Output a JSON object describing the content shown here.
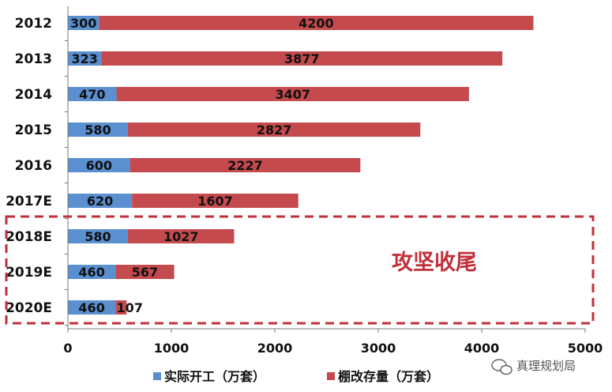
{
  "chart_data": {
    "type": "bar",
    "orientation": "horizontal",
    "stacked": true,
    "categories": [
      "2012",
      "2013",
      "2014",
      "2015",
      "2016",
      "2017E",
      "2018E",
      "2019E",
      "2020E"
    ],
    "series": [
      {
        "name": "实际开工（万套）",
        "color": "#5a8fd0",
        "values": [
          300,
          323,
          470,
          580,
          600,
          620,
          580,
          460,
          460
        ]
      },
      {
        "name": "棚改存量（万套）",
        "color": "#c44a4e",
        "values": [
          4200,
          3877,
          3407,
          2827,
          2227,
          1607,
          1027,
          567,
          107
        ]
      }
    ],
    "xlim": [
      0,
      5000
    ],
    "xticks": [
      "0",
      "1000",
      "2000",
      "3000",
      "4000",
      "5000"
    ],
    "grid": false,
    "legend_position": "bottom",
    "annotation": {
      "text": "攻坚收尾",
      "color": "#c0303a",
      "box_style": "dashed",
      "covers_categories": [
        "2018E",
        "2019E",
        "2020E"
      ]
    }
  },
  "watermark": {
    "icon": "wechat-icon",
    "text": "真理规划局"
  }
}
